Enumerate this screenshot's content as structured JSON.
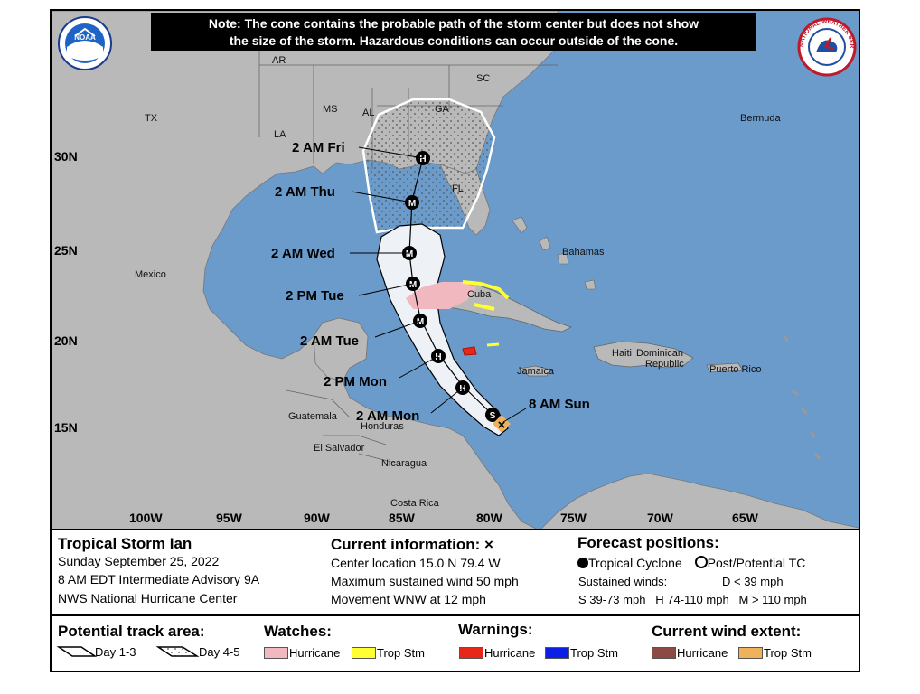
{
  "note": {
    "line1": "Note: The cone contains the probable path of the storm center but does not show",
    "line2": "the size of the storm. Hazardous conditions can occur outside of the cone."
  },
  "logos": {
    "noaa": "NOAA",
    "nws": "NATIONAL WEATHER SERVICE"
  },
  "lat_labels": [
    "30N",
    "25N",
    "20N",
    "15N"
  ],
  "lon_labels": [
    "100W",
    "95W",
    "90W",
    "85W",
    "80W",
    "75W",
    "70W",
    "65W"
  ],
  "places": {
    "ar": "AR",
    "ms": "MS",
    "al": "AL",
    "ga": "GA",
    "sc": "SC",
    "la": "LA",
    "tx": "TX",
    "fl": "FL",
    "bermuda": "Bermuda",
    "mexico": "Mexico",
    "bahamas": "Bahamas",
    "cuba": "Cuba",
    "haiti": "Haiti",
    "dominican": "Dominican",
    "republic": "Republic",
    "puerto_rico": "Puerto Rico",
    "jamaica": "Jamaica",
    "guatemala": "Guatemala",
    "honduras": "Honduras",
    "el_salvador": "El Salvador",
    "nicaragua": "Nicaragua",
    "costa_rica": "Costa Rica"
  },
  "forecast_points": [
    {
      "label": "2 AM Fri",
      "symbol": "H"
    },
    {
      "label": "2 AM Thu",
      "symbol": "M"
    },
    {
      "label": "2 AM Wed",
      "symbol": "M"
    },
    {
      "label": "2 PM Tue",
      "symbol": "M"
    },
    {
      "label": "2 AM Tue",
      "symbol": "M"
    },
    {
      "label": "2 PM Mon",
      "symbol": "H"
    },
    {
      "label": "2 AM Mon",
      "symbol": "H"
    },
    {
      "label": "8 AM Sun",
      "symbol": "S"
    }
  ],
  "storm": {
    "name": "Tropical Storm Ian",
    "date": "Sunday September 25, 2022",
    "advisory": "8 AM EDT Intermediate Advisory 9A",
    "center": "NWS National Hurricane Center"
  },
  "current": {
    "title": "Current information: ",
    "mark": "×",
    "location": "Center location 15.0 N 79.4 W",
    "wind": "Maximum sustained wind 50 mph",
    "movement": "Movement WNW at 12 mph"
  },
  "forecast_key": {
    "title": "Forecast positions:",
    "tc": "Tropical Cyclone",
    "ptc": "Post/Potential TC",
    "winds_label": "Sustained winds:",
    "d": "D < 39 mph",
    "cats": "S 39-73 mph   H 74-110 mph   M > 110 mph"
  },
  "legend": {
    "track_title": "Potential track area:",
    "day13": "Day 1-3",
    "day45": "Day 4-5",
    "watches_title": "Watches:",
    "watch_hurricane": "Hurricane",
    "watch_trop": "Trop Stm",
    "warnings_title": "Warnings:",
    "warn_hurricane": "Hurricane",
    "warn_trop": "Trop Stm",
    "wind_title": "Current wind extent:",
    "wind_hurricane": "Hurricane",
    "wind_trop": "Trop Stm"
  },
  "colors": {
    "ocean": "#6a9bcb",
    "land": "#b9b9b9",
    "hurricane_watch": "#f2b8c0",
    "trop_watch": "#ffff33",
    "hurricane_warning": "#e8271b",
    "trop_warning": "#0b1fe6",
    "wind_hurricane": "#8b4b44",
    "wind_trop": "#eeb35a"
  }
}
